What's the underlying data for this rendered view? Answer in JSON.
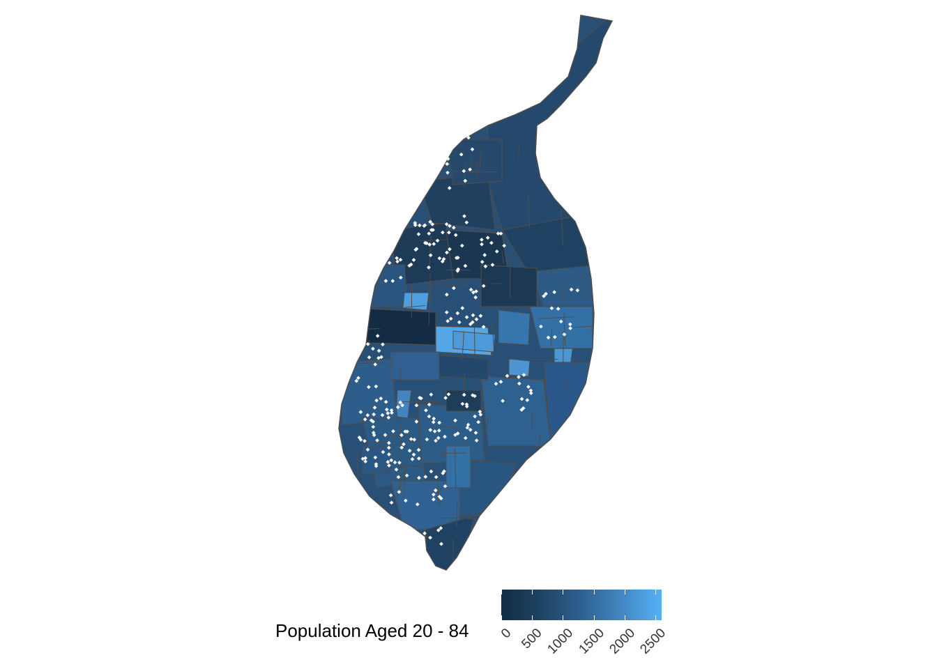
{
  "legend": {
    "title": "Population Aged 20 - 84",
    "ticks": [
      {
        "value": 0,
        "label": "0"
      },
      {
        "value": 500,
        "label": "500"
      },
      {
        "value": 1000,
        "label": "1000"
      },
      {
        "value": 1500,
        "label": "1500"
      },
      {
        "value": 2000,
        "label": "2000"
      },
      {
        "value": 2500,
        "label": "2500"
      }
    ],
    "range": [
      0,
      2600
    ],
    "color_low": "#132B43",
    "color_high": "#56B1F7"
  },
  "map": {
    "border_color": "#4d4d4d",
    "point_color": "#ffffff"
  }
}
